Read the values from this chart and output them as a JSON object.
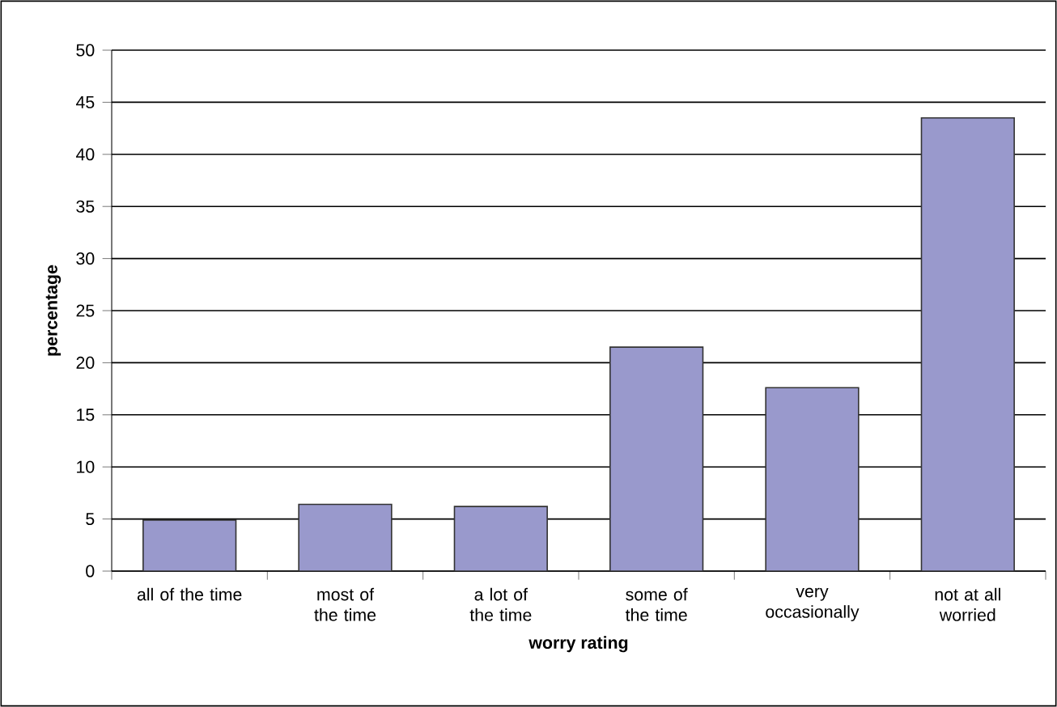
{
  "chart_data": {
    "type": "bar",
    "xlabel": "worry rating",
    "ylabel": "percentage",
    "categories": [
      "all of the time",
      "most of the time",
      "a lot of the time",
      "some of the time",
      "very occasionally",
      "not at all worried"
    ],
    "values": [
      4.9,
      6.4,
      6.2,
      21.5,
      17.6,
      43.5
    ],
    "color": "#9999cc",
    "ylim": [
      0,
      50
    ],
    "yticks": [
      0,
      5,
      10,
      15,
      20,
      25,
      30,
      35,
      40,
      45,
      50
    ],
    "grid": "y"
  }
}
